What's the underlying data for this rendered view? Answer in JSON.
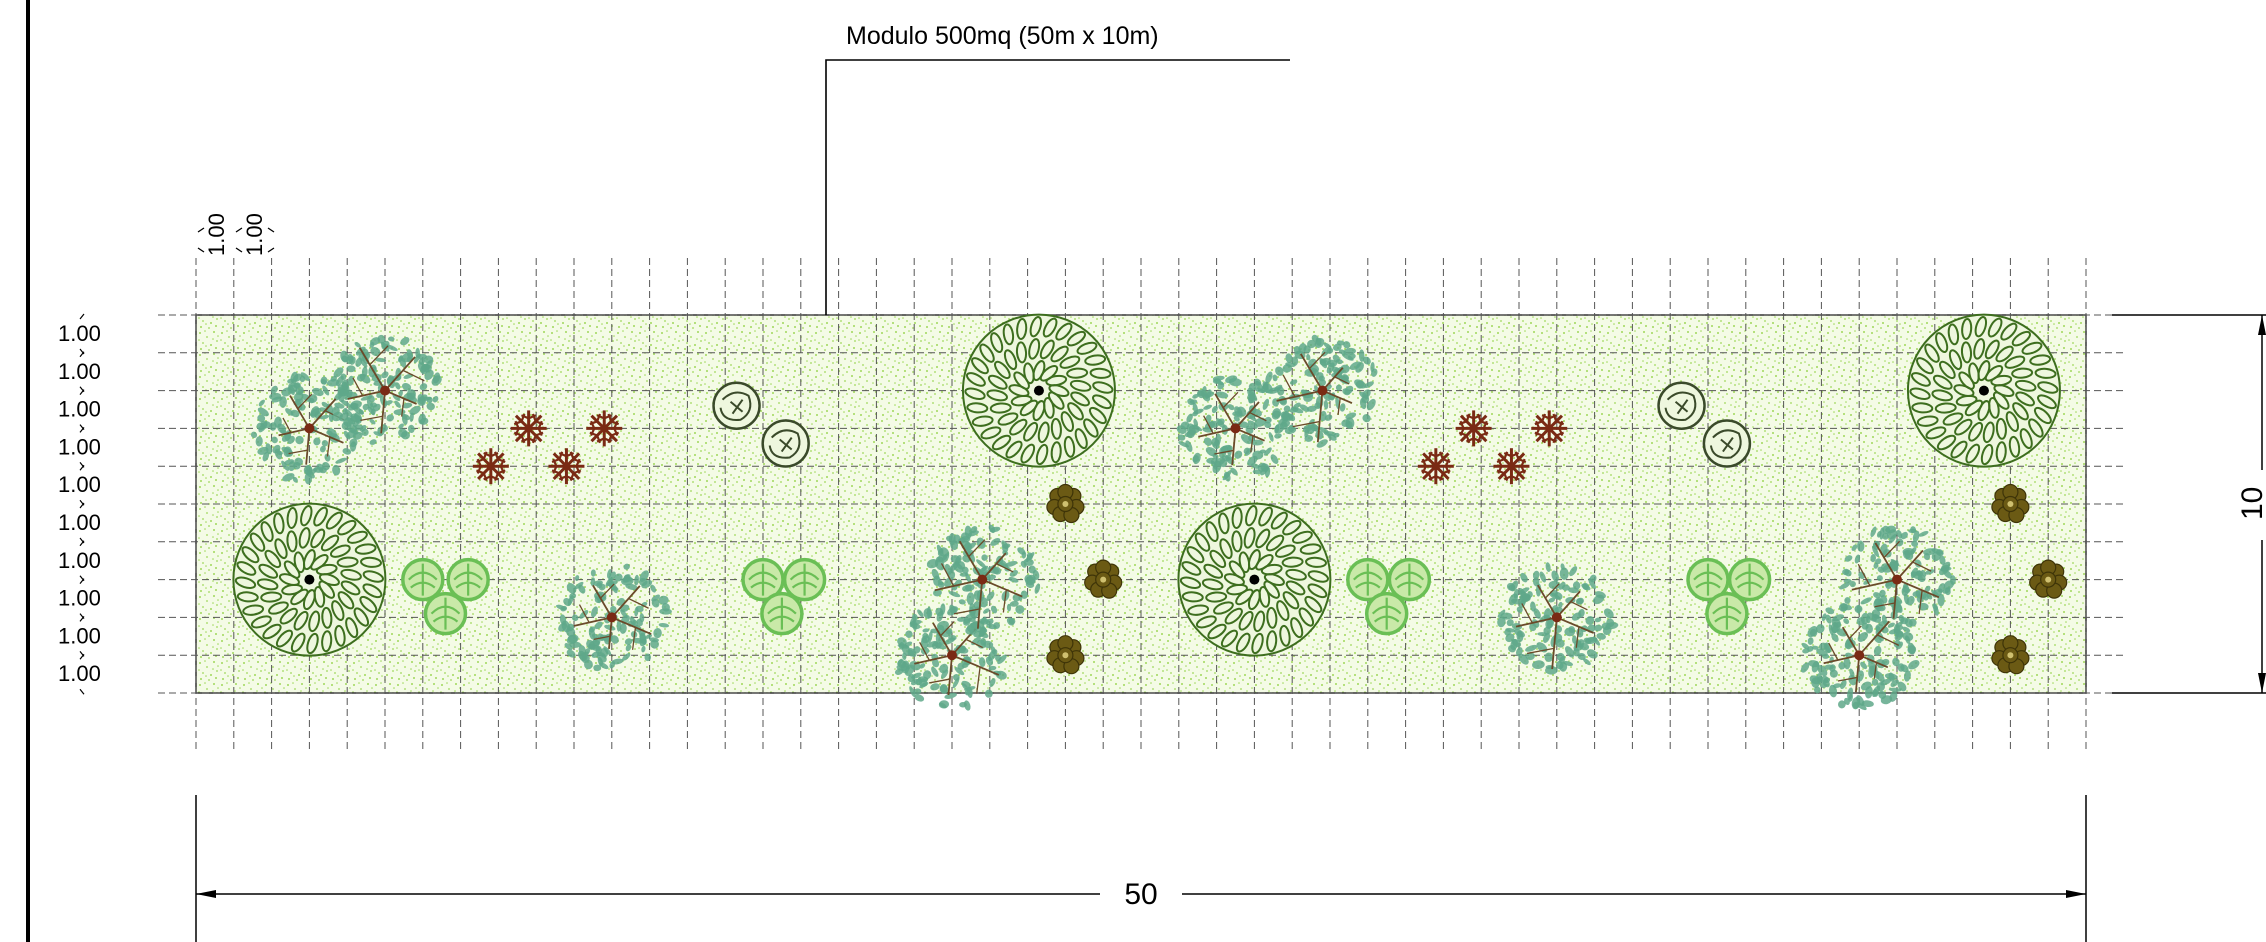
{
  "title": "Modulo 500mq (50m x 10m)",
  "dimensions": {
    "width_label": "50",
    "height_label": "10",
    "row_spacing_label": "1.00",
    "col_spacing_labels": [
      "1.00",
      "1.00"
    ]
  },
  "plot": {
    "columns": 50,
    "rows": 10
  },
  "colors": {
    "lawn_fill": "#f4fbe6",
    "lawn_dots": "#9fd85a",
    "grid": "#555555",
    "tree_dark": "#3d6e1e",
    "tree_teal": "#5fa88a",
    "shrub_green": "#6abf55",
    "shrub_outline": "#3a4a2a",
    "shrub_olive": "#6b5a14",
    "flower_red": "#7a2a14"
  },
  "plants": [
    {
      "type": "teal-tree",
      "col": 3.0,
      "row": 3.0
    },
    {
      "type": "teal-tree",
      "col": 5.0,
      "row": 2.0
    },
    {
      "type": "red-shrub",
      "col": 8.8,
      "row": 3.0
    },
    {
      "type": "red-shrub",
      "col": 10.8,
      "row": 3.0
    },
    {
      "type": "red-shrub",
      "col": 7.8,
      "row": 4.0
    },
    {
      "type": "red-shrub",
      "col": 9.8,
      "row": 4.0
    },
    {
      "type": "outline-shrub",
      "col": 14.3,
      "row": 2.4
    },
    {
      "type": "outline-shrub",
      "col": 15.6,
      "row": 3.4
    },
    {
      "type": "dark-tree",
      "col": 22.3,
      "row": 2.0
    },
    {
      "type": "teal-tree",
      "col": 27.5,
      "row": 3.0
    },
    {
      "type": "teal-tree",
      "col": 29.8,
      "row": 2.0
    },
    {
      "type": "red-shrub",
      "col": 33.8,
      "row": 3.0
    },
    {
      "type": "red-shrub",
      "col": 35.8,
      "row": 3.0
    },
    {
      "type": "red-shrub",
      "col": 32.8,
      "row": 4.0
    },
    {
      "type": "red-shrub",
      "col": 34.8,
      "row": 4.0
    },
    {
      "type": "outline-shrub",
      "col": 39.3,
      "row": 2.4
    },
    {
      "type": "outline-shrub",
      "col": 40.5,
      "row": 3.4
    },
    {
      "type": "dark-tree",
      "col": 47.3,
      "row": 2.0
    },
    {
      "type": "dark-tree",
      "col": 3.0,
      "row": 7.0
    },
    {
      "type": "green-shrub",
      "col": 6.0,
      "row": 7.0
    },
    {
      "type": "green-shrub",
      "col": 7.2,
      "row": 7.0
    },
    {
      "type": "green-shrub",
      "col": 6.6,
      "row": 7.9
    },
    {
      "type": "teal-tree",
      "col": 11.0,
      "row": 8.0
    },
    {
      "type": "green-shrub",
      "col": 15.0,
      "row": 7.0
    },
    {
      "type": "green-shrub",
      "col": 16.1,
      "row": 7.0
    },
    {
      "type": "green-shrub",
      "col": 15.5,
      "row": 7.9
    },
    {
      "type": "teal-tree",
      "col": 20.0,
      "row": 9.0
    },
    {
      "type": "teal-tree",
      "col": 20.8,
      "row": 7.0
    },
    {
      "type": "olive-shrub",
      "col": 23.0,
      "row": 5.0
    },
    {
      "type": "olive-shrub",
      "col": 24.0,
      "row": 7.0
    },
    {
      "type": "olive-shrub",
      "col": 23.0,
      "row": 9.0
    },
    {
      "type": "dark-tree",
      "col": 28.0,
      "row": 7.0
    },
    {
      "type": "green-shrub",
      "col": 31.0,
      "row": 7.0
    },
    {
      "type": "green-shrub",
      "col": 32.1,
      "row": 7.0
    },
    {
      "type": "green-shrub",
      "col": 31.5,
      "row": 7.9
    },
    {
      "type": "teal-tree",
      "col": 36.0,
      "row": 8.0
    },
    {
      "type": "green-shrub",
      "col": 40.0,
      "row": 7.0
    },
    {
      "type": "green-shrub",
      "col": 41.1,
      "row": 7.0
    },
    {
      "type": "green-shrub",
      "col": 40.5,
      "row": 7.9
    },
    {
      "type": "teal-tree",
      "col": 44.0,
      "row": 9.0
    },
    {
      "type": "teal-tree",
      "col": 45.0,
      "row": 7.0
    },
    {
      "type": "olive-shrub",
      "col": 48.0,
      "row": 5.0
    },
    {
      "type": "olive-shrub",
      "col": 49.0,
      "row": 7.0
    },
    {
      "type": "olive-shrub",
      "col": 48.0,
      "row": 9.0
    }
  ]
}
